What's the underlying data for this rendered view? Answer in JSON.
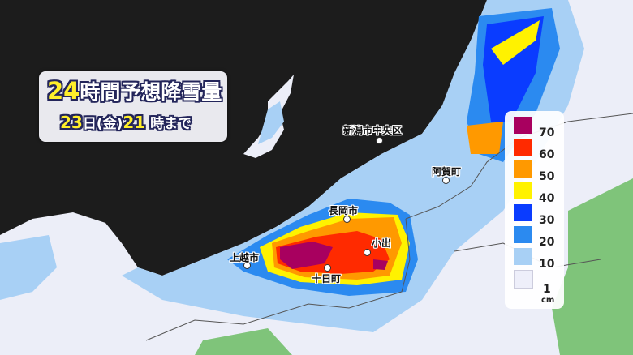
{
  "title": {
    "hours": "24",
    "main": "時間予想降雪量"
  },
  "subtitle": {
    "day": "23",
    "day_unit": "日(金)",
    "hour": "21",
    "hour_unit": " 時まで"
  },
  "legend": {
    "unit": "cm",
    "levels": [
      {
        "label": "70",
        "color": "#a8005f"
      },
      {
        "label": "60",
        "color": "#ff2a00"
      },
      {
        "label": "50",
        "color": "#ff9900"
      },
      {
        "label": "40",
        "color": "#fff200"
      },
      {
        "label": "30",
        "color": "#0a3cff"
      },
      {
        "label": "20",
        "color": "#2b8af0"
      },
      {
        "label": "10",
        "color": "#a8d0f5"
      },
      {
        "label": "1",
        "color": "#eeeffa"
      }
    ]
  },
  "cities": [
    {
      "name": "新潟市中央区"
    },
    {
      "name": "阿賀町"
    },
    {
      "name": "長岡市"
    },
    {
      "name": "小出"
    },
    {
      "name": "上越市"
    },
    {
      "name": "十日町"
    }
  ],
  "colors": {
    "sea": "#1c1c1c",
    "land": "#d9dee8",
    "green": "#7fc47a"
  }
}
